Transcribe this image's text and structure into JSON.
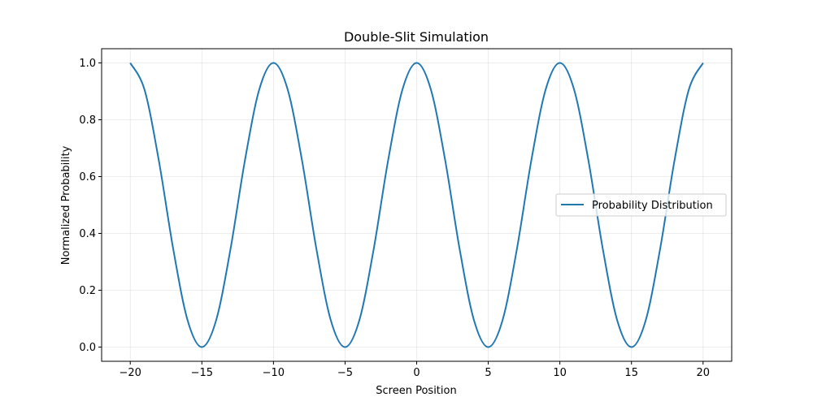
{
  "chart_data": {
    "type": "line",
    "title": "Double-Slit Simulation",
    "xlabel": "Screen Position",
    "ylabel": "Normalized Probability",
    "xlim": [
      -22,
      22
    ],
    "ylim": [
      -0.05,
      1.05
    ],
    "x_ticks": [
      -20,
      -15,
      -10,
      -5,
      0,
      5,
      10,
      15,
      20
    ],
    "x_tick_labels": [
      "−20",
      "−15",
      "−10",
      "−5",
      "0",
      "5",
      "10",
      "15",
      "20"
    ],
    "y_ticks": [
      0.0,
      0.2,
      0.4,
      0.6,
      0.8,
      1.0
    ],
    "y_tick_labels": [
      "0.0",
      "0.2",
      "0.4",
      "0.6",
      "0.8",
      "1.0"
    ],
    "grid": true,
    "legend_position": "center-right",
    "series": [
      {
        "name": "Probability Distribution",
        "color": "#1f77b4",
        "x": [
          -20,
          -19,
          -18,
          -17,
          -16,
          -15,
          -14,
          -13,
          -12,
          -11,
          -10,
          -9,
          -8,
          -7,
          -6,
          -5,
          -4,
          -3,
          -2,
          -1,
          0,
          1,
          2,
          3,
          4,
          5,
          6,
          7,
          8,
          9,
          10,
          11,
          12,
          13,
          14,
          15,
          16,
          17,
          18,
          19,
          20
        ],
        "y": [
          1.0,
          0.905,
          0.655,
          0.345,
          0.095,
          0.0,
          0.095,
          0.345,
          0.655,
          0.905,
          1.0,
          0.905,
          0.655,
          0.345,
          0.095,
          0.0,
          0.095,
          0.345,
          0.655,
          0.905,
          1.0,
          0.905,
          0.655,
          0.345,
          0.095,
          0.0,
          0.095,
          0.345,
          0.655,
          0.905,
          1.0,
          0.905,
          0.655,
          0.345,
          0.095,
          0.0,
          0.095,
          0.345,
          0.655,
          0.905,
          1.0
        ]
      }
    ]
  }
}
